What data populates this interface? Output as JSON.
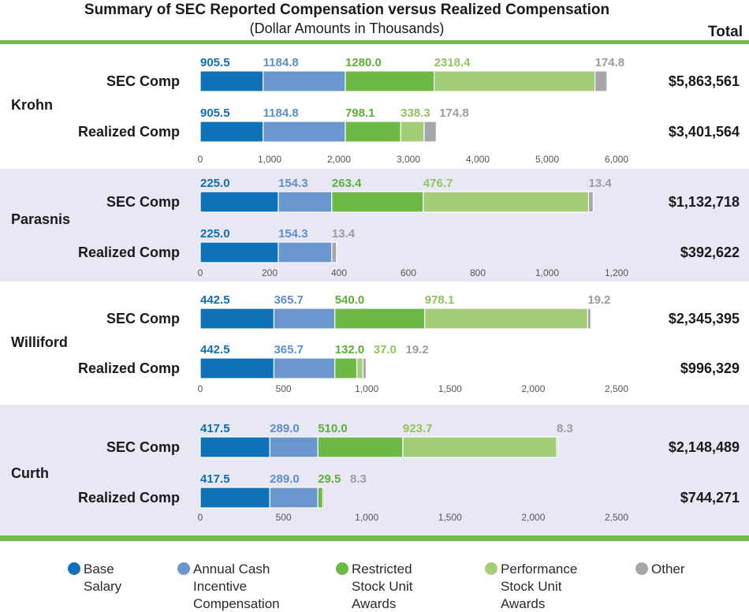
{
  "title": "Summary of SEC Reported Compensation versus Realized Compensation",
  "subtitle": "(Dollar Amounts in Thousands)",
  "total_header": "Total",
  "colors": {
    "base_salary": "#0f72b8",
    "annual_cash": "#6b97cf",
    "rsu": "#6eb846",
    "psu": "#a3cd77",
    "other": "#a5a7aa",
    "band": "#e7e8f4",
    "rule": "#6cc04a",
    "text": "#1a1a1a",
    "axis": "#555555"
  },
  "legend": [
    {
      "key": "base_salary",
      "lines": [
        "Base",
        "Salary"
      ]
    },
    {
      "key": "annual_cash",
      "lines": [
        "Annual Cash",
        "Incentive",
        "Compensation"
      ]
    },
    {
      "key": "rsu",
      "lines": [
        "Restricted",
        "Stock Unit",
        "Awards"
      ]
    },
    {
      "key": "psu",
      "lines": [
        "Performance",
        "Stock Unit",
        "Awards"
      ]
    },
    {
      "key": "other",
      "lines": [
        "Other"
      ]
    }
  ],
  "chart_data": [
    {
      "type": "bar",
      "orientation": "horizontal",
      "stacked": true,
      "executive": "Krohn",
      "xlim": [
        0,
        6000
      ],
      "ticks": [
        0,
        1000,
        2000,
        3000,
        4000,
        5000,
        6000
      ],
      "tick_labels": [
        "0",
        "1,000",
        "2,000",
        "3,000",
        "4,000",
        "5,000",
        "6,000"
      ],
      "rows": [
        {
          "label": "SEC Comp",
          "total": "$5,863,561",
          "segments": [
            {
              "key": "base_salary",
              "value": 905.5,
              "label": "905.5"
            },
            {
              "key": "annual_cash",
              "value": 1184.8,
              "label": "1184.8"
            },
            {
              "key": "rsu",
              "value": 1280.0,
              "label": "1280.0"
            },
            {
              "key": "psu",
              "value": 2318.4,
              "label": "2318.4"
            },
            {
              "key": "other",
              "value": 174.8,
              "label": "174.8"
            }
          ]
        },
        {
          "label": "Realized Comp",
          "total": "$3,401,564",
          "segments": [
            {
              "key": "base_salary",
              "value": 905.5,
              "label": "905.5"
            },
            {
              "key": "annual_cash",
              "value": 1184.8,
              "label": "1184.8"
            },
            {
              "key": "rsu",
              "value": 798.1,
              "label": "798.1"
            },
            {
              "key": "psu",
              "value": 338.3,
              "label": "338.3"
            },
            {
              "key": "other",
              "value": 174.8,
              "label": "174.8"
            }
          ]
        }
      ]
    },
    {
      "type": "bar",
      "orientation": "horizontal",
      "stacked": true,
      "executive": "Parasnis",
      "xlim": [
        0,
        1200
      ],
      "ticks": [
        0,
        200,
        400,
        600,
        800,
        1000,
        1200
      ],
      "tick_labels": [
        "0",
        "200",
        "400",
        "600",
        "800",
        "1,000",
        "1,200"
      ],
      "rows": [
        {
          "label": "SEC Comp",
          "total": "$1,132,718",
          "segments": [
            {
              "key": "base_salary",
              "value": 225.0,
              "label": "225.0"
            },
            {
              "key": "annual_cash",
              "value": 154.3,
              "label": "154.3"
            },
            {
              "key": "rsu",
              "value": 263.4,
              "label": "263.4"
            },
            {
              "key": "psu",
              "value": 476.7,
              "label": "476.7"
            },
            {
              "key": "other",
              "value": 13.4,
              "label": "13.4"
            }
          ]
        },
        {
          "label": "Realized Comp",
          "total": "$392,622",
          "segments": [
            {
              "key": "base_salary",
              "value": 225.0,
              "label": "225.0"
            },
            {
              "key": "annual_cash",
              "value": 154.3,
              "label": "154.3"
            },
            {
              "key": "other",
              "value": 13.4,
              "label": "13.4"
            }
          ]
        }
      ]
    },
    {
      "type": "bar",
      "orientation": "horizontal",
      "stacked": true,
      "executive": "Williford",
      "xlim": [
        0,
        2500
      ],
      "ticks": [
        0,
        500,
        1000,
        1500,
        2000,
        2500
      ],
      "tick_labels": [
        "0",
        "500",
        "1,000",
        "1,500",
        "2,000",
        "2,500"
      ],
      "rows": [
        {
          "label": "SEC Comp",
          "total": "$2,345,395",
          "segments": [
            {
              "key": "base_salary",
              "value": 442.5,
              "label": "442.5"
            },
            {
              "key": "annual_cash",
              "value": 365.7,
              "label": "365.7"
            },
            {
              "key": "rsu",
              "value": 540.0,
              "label": "540.0"
            },
            {
              "key": "psu",
              "value": 978.1,
              "label": "978.1"
            },
            {
              "key": "other",
              "value": 19.2,
              "label": "19.2"
            }
          ]
        },
        {
          "label": "Realized Comp",
          "total": "$996,329",
          "segments": [
            {
              "key": "base_salary",
              "value": 442.5,
              "label": "442.5"
            },
            {
              "key": "annual_cash",
              "value": 365.7,
              "label": "365.7"
            },
            {
              "key": "rsu",
              "value": 132.0,
              "label": "132.0"
            },
            {
              "key": "psu",
              "value": 37.0,
              "label": "37.0"
            },
            {
              "key": "other",
              "value": 19.2,
              "label": "19.2"
            }
          ]
        }
      ]
    },
    {
      "type": "bar",
      "orientation": "horizontal",
      "stacked": true,
      "executive": "Curth",
      "xlim": [
        0,
        2500
      ],
      "ticks": [
        0,
        500,
        1000,
        1500,
        2000,
        2500
      ],
      "tick_labels": [
        "0",
        "500",
        "1,000",
        "1,500",
        "2,000",
        "2,500"
      ],
      "rows": [
        {
          "label": "SEC Comp",
          "total": "$2,148,489",
          "segments": [
            {
              "key": "base_salary",
              "value": 417.5,
              "label": "417.5"
            },
            {
              "key": "annual_cash",
              "value": 289.0,
              "label": "289.0"
            },
            {
              "key": "rsu",
              "value": 510.0,
              "label": "510.0"
            },
            {
              "key": "psu",
              "value": 923.7,
              "label": "923.7"
            },
            {
              "key": "other",
              "value": 8.3,
              "label": "8.3"
            }
          ]
        },
        {
          "label": "Realized Comp",
          "total": "$744,271",
          "segments": [
            {
              "key": "base_salary",
              "value": 417.5,
              "label": "417.5"
            },
            {
              "key": "annual_cash",
              "value": 289.0,
              "label": "289.0"
            },
            {
              "key": "rsu",
              "value": 29.5,
              "label": "29.5"
            },
            {
              "key": "other",
              "value": 8.3,
              "label": "8.3"
            }
          ]
        }
      ]
    }
  ]
}
